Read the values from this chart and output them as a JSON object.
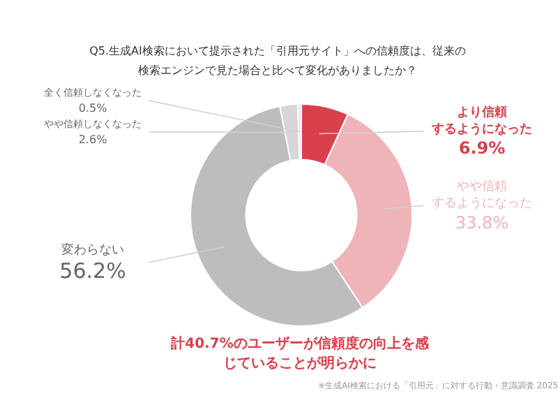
{
  "chart_data": {
    "type": "donut",
    "title": "Q5.生成AI検索において提示された「引用元サイト」への信頼度は、従来の検索エンジンで見た場合と比べて変化がありましたか？",
    "categories": [
      "より信頼するようになった",
      "やや信頼するようになった",
      "変わらない",
      "やや信頼しなくなった",
      "全く信頼しなくなった"
    ],
    "values": [
      6.9,
      33.8,
      56.2,
      2.6,
      0.5
    ],
    "colors": [
      "#d8404c",
      "#efb4b8",
      "#bdbdbd",
      "#d6d6d6",
      "#e6e6e6"
    ],
    "value_labels": [
      "6.9%",
      "33.8%",
      "56.2%",
      "2.6%",
      "0.5%"
    ],
    "legend": false,
    "annotations": [
      "計40.7%のユーザーが信頼度の向上を感じていることが明らかに",
      "※生成AI検索における「引用元」に対する行動・意識調査 2025"
    ]
  }
}
